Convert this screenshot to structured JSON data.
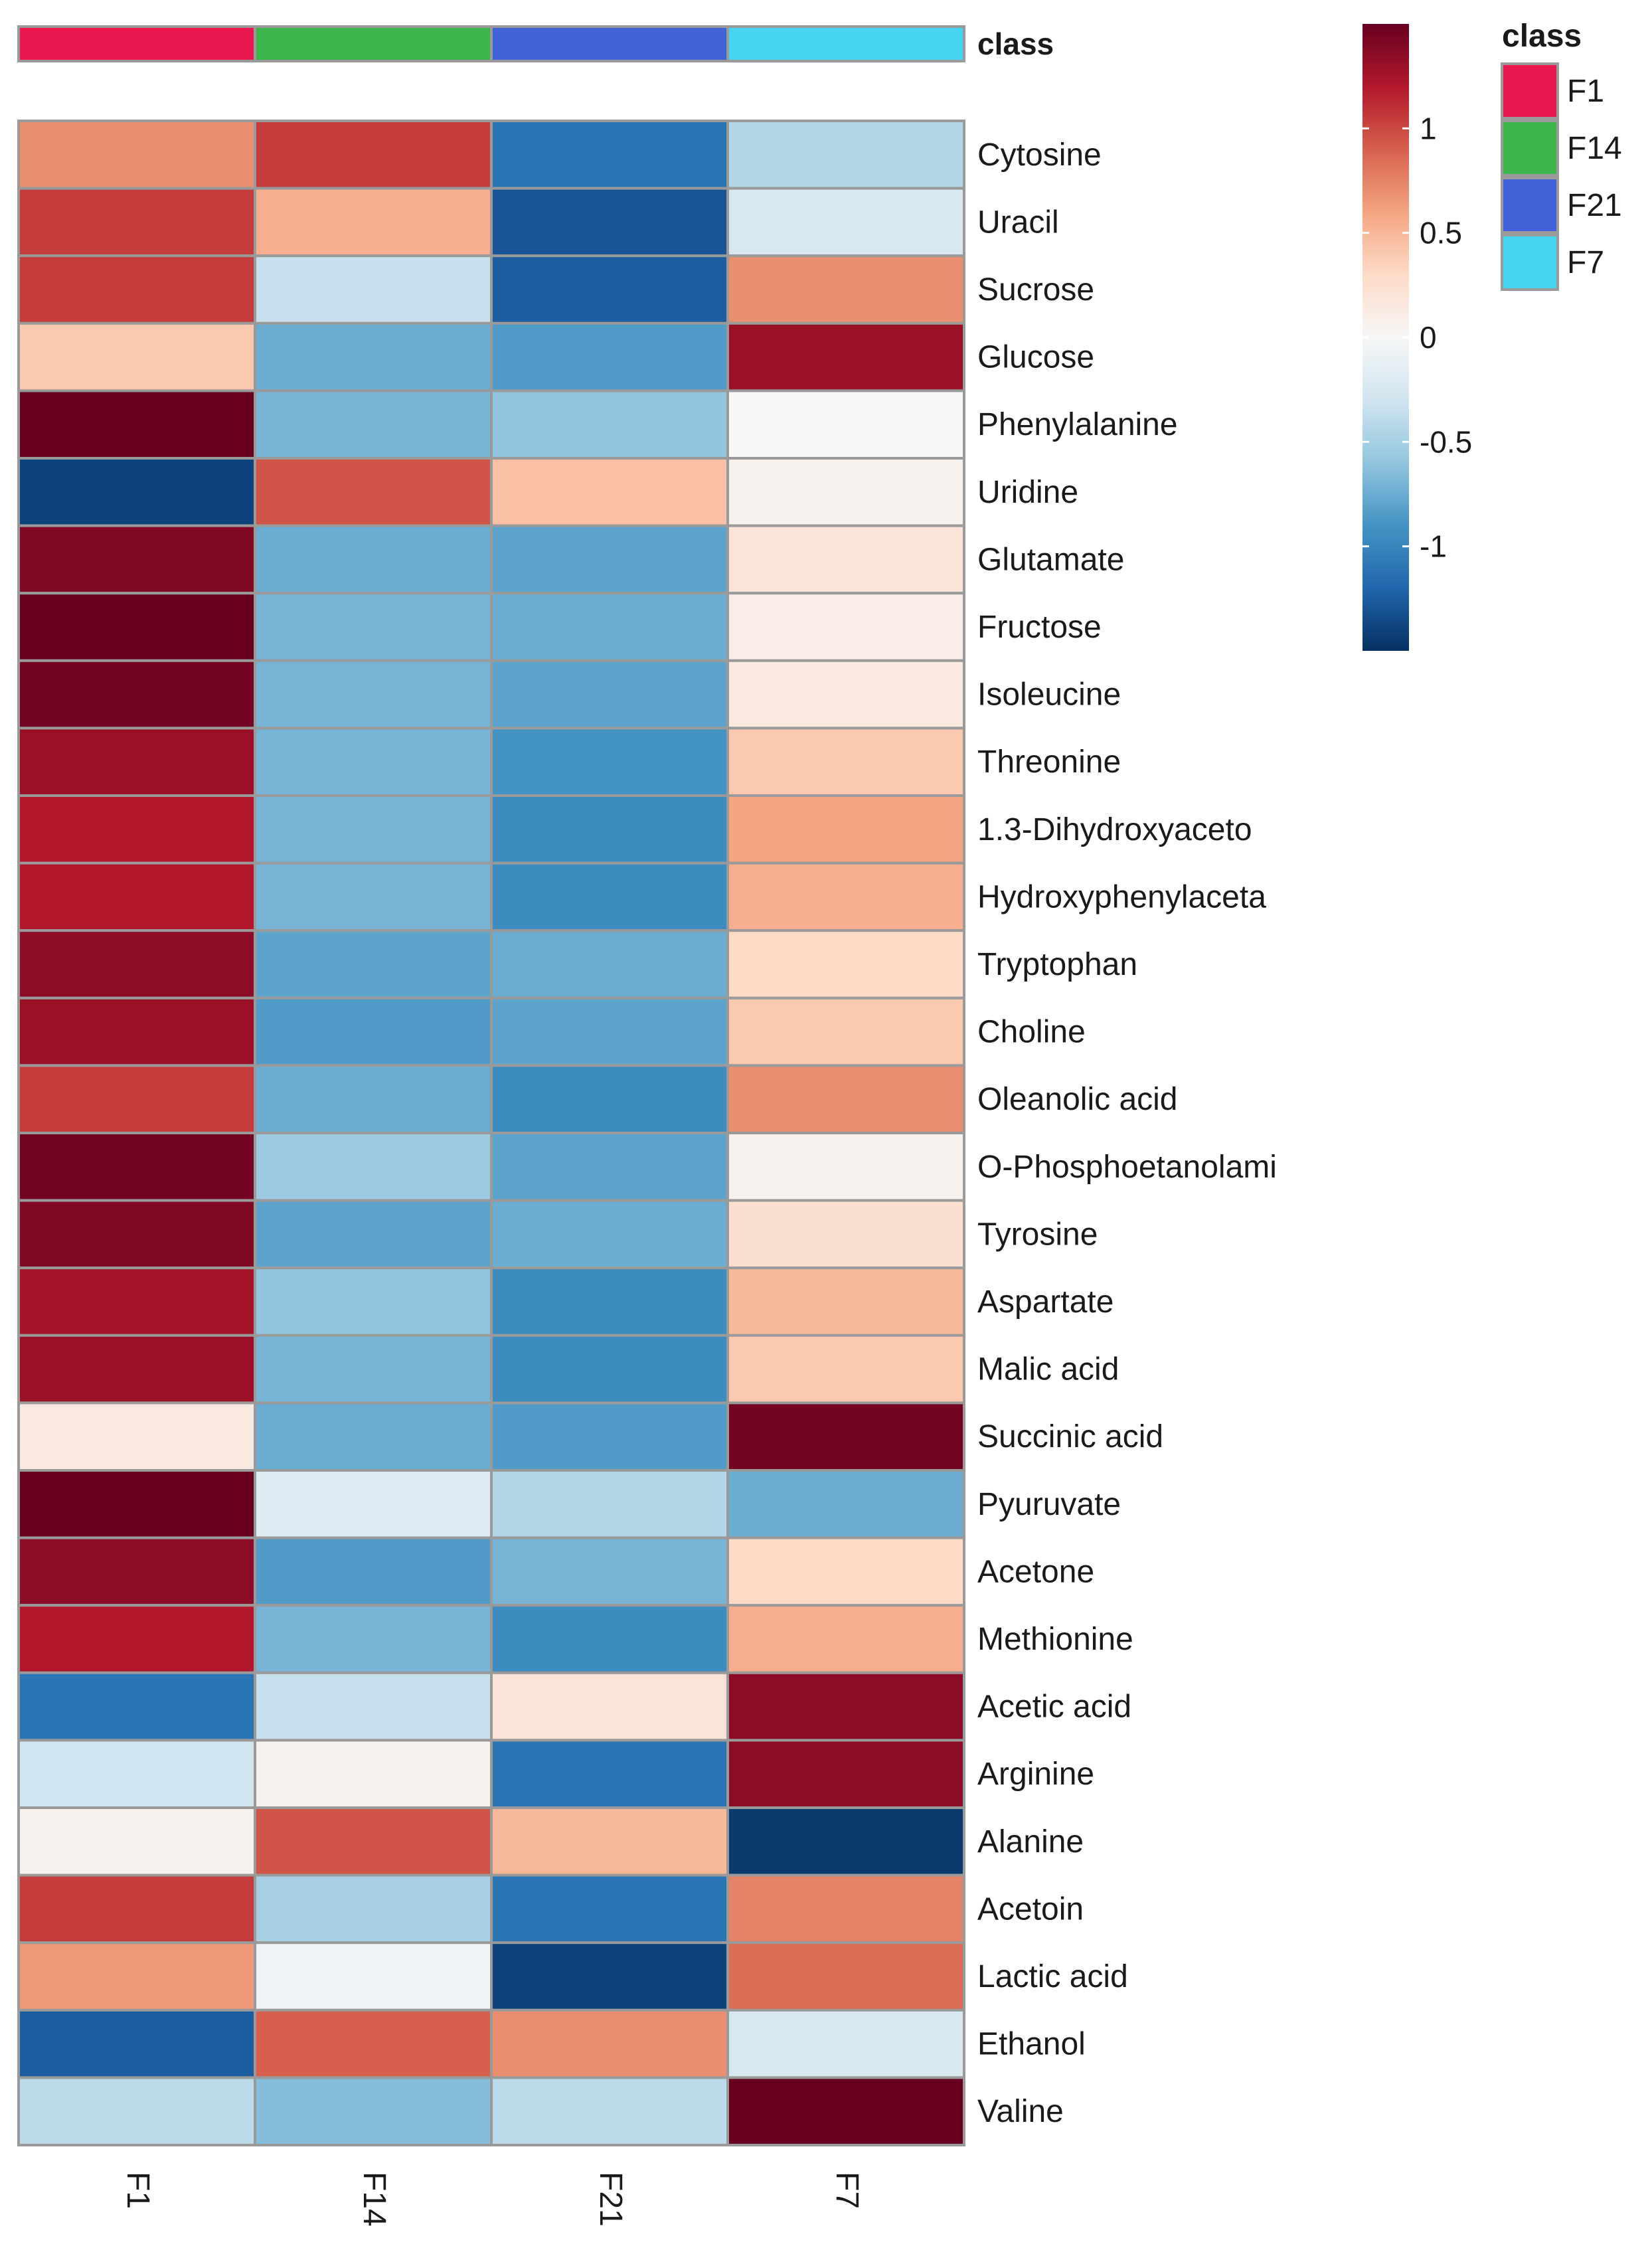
{
  "chart_data": {
    "type": "heatmap",
    "title": "",
    "columns": [
      "F1",
      "F14",
      "F21",
      "F7"
    ],
    "class_track_label": "class",
    "class_colors": {
      "F1": "#e8174d",
      "F14": "#3cb54a",
      "F21": "#4263d8",
      "F7": "#45d4ef"
    },
    "rows": [
      "Cytosine",
      "Uracil",
      "Sucrose",
      "Glucose",
      "Phenylalanine",
      "Uridine",
      "Glutamate",
      "Fructose",
      "Isoleucine",
      "Threonine",
      "1.3-Dihydroxyaceto",
      "Hydroxyphenylaceta",
      "Tryptophan",
      "Choline",
      "Oleanolic acid",
      "O-Phosphoetanolami",
      "Tyrosine",
      "Aspartate",
      "Malic acid",
      "Succinic acid",
      "Pyuruvate",
      "Acetone",
      "Methionine",
      "Acetic acid",
      "Arginine",
      "Alanine",
      "Acetoin",
      "Lactic acid",
      "Ethanol",
      "Valine"
    ],
    "values": [
      [
        0.7,
        1.05,
        -1.1,
        -0.45
      ],
      [
        1.05,
        0.55,
        -1.3,
        -0.25
      ],
      [
        1.05,
        -0.35,
        -1.25,
        0.7
      ],
      [
        0.4,
        -0.75,
        -0.85,
        1.3
      ],
      [
        1.5,
        -0.7,
        -0.6,
        0.0
      ],
      [
        -1.4,
        0.95,
        0.45,
        0.05
      ],
      [
        1.4,
        -0.75,
        -0.8,
        0.2
      ],
      [
        1.5,
        -0.7,
        -0.75,
        0.1
      ],
      [
        1.45,
        -0.7,
        -0.8,
        0.15
      ],
      [
        1.3,
        -0.7,
        -0.9,
        0.4
      ],
      [
        1.2,
        -0.7,
        -0.95,
        0.6
      ],
      [
        1.2,
        -0.7,
        -0.95,
        0.55
      ],
      [
        1.35,
        -0.8,
        -0.75,
        0.3
      ],
      [
        1.3,
        -0.85,
        -0.8,
        0.4
      ],
      [
        1.05,
        -0.75,
        -0.95,
        0.7
      ],
      [
        1.45,
        -0.55,
        -0.8,
        0.05
      ],
      [
        1.4,
        -0.8,
        -0.75,
        0.25
      ],
      [
        1.25,
        -0.6,
        -0.95,
        0.5
      ],
      [
        1.3,
        -0.7,
        -0.95,
        0.4
      ],
      [
        0.15,
        -0.75,
        -0.85,
        1.45
      ],
      [
        1.55,
        -0.2,
        -0.45,
        -0.75
      ],
      [
        1.35,
        -0.85,
        -0.7,
        0.3
      ],
      [
        1.2,
        -0.7,
        -0.95,
        0.55
      ],
      [
        -1.1,
        -0.35,
        0.2,
        1.35
      ],
      [
        -0.3,
        0.05,
        -1.1,
        1.35
      ],
      [
        0.05,
        0.95,
        0.5,
        -1.45
      ],
      [
        1.05,
        -0.5,
        -1.1,
        0.75
      ],
      [
        0.65,
        -0.05,
        -1.4,
        0.85
      ],
      [
        -1.25,
        0.9,
        0.7,
        -0.25
      ],
      [
        -0.4,
        -0.65,
        -0.4,
        1.5
      ]
    ],
    "color_scale": {
      "domain": [
        -1.5,
        1.5
      ],
      "palette": [
        "#053061",
        "#2166ac",
        "#4393c3",
        "#92c5de",
        "#d1e5f0",
        "#f7f7f7",
        "#fddbc7",
        "#f4a582",
        "#d6604d",
        "#b2182b",
        "#67001f"
      ],
      "legend_ticks": [
        1,
        0.5,
        0,
        -0.5,
        -1
      ],
      "legend_tick_labels": [
        "1",
        "0.5",
        "0",
        "-0.5",
        "-1"
      ]
    },
    "legend": {
      "title": "class",
      "entries": [
        "F1",
        "F14",
        "F21",
        "F7"
      ]
    }
  }
}
